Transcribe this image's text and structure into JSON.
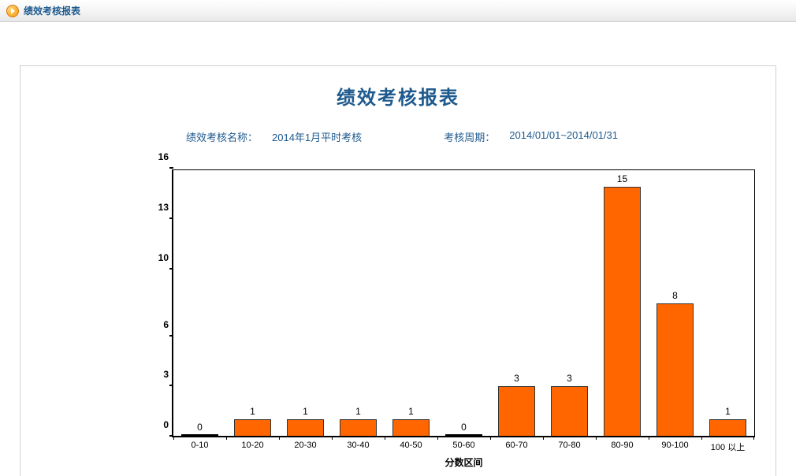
{
  "breadcrumb": {
    "title": "绩效考核报表"
  },
  "report": {
    "title": "绩效考核报表",
    "name_label": "绩效考核名称：",
    "name_value": "2014年1月平时考核",
    "period_label": "考核周期：",
    "period_value": "2014/01/01~2014/01/31"
  },
  "chart": {
    "type": "bar",
    "x_axis_label": "分数区间",
    "categories": [
      "0-10",
      "10-20",
      "20-30",
      "30-40",
      "40-50",
      "50-60",
      "60-70",
      "70-80",
      "80-90",
      "90-100",
      "100 以上"
    ],
    "values": [
      0,
      1,
      1,
      1,
      1,
      0,
      3,
      3,
      15,
      8,
      1
    ],
    "value_labels": [
      "0",
      "1",
      "1",
      "1",
      "1",
      "0",
      "3",
      "3",
      "15",
      "8",
      "1"
    ],
    "bar_color": "#ff6600",
    "bar_border_color": "#333333",
    "ylim": [
      0,
      16
    ],
    "yticks": [
      0,
      3,
      6,
      10,
      13,
      16
    ],
    "ytick_labels": [
      "0",
      "3",
      "6",
      "10",
      "13",
      "16"
    ],
    "axis_color": "#000000",
    "background_color": "#ffffff",
    "label_color": "#000000",
    "label_fontsize": 12,
    "bar_width": 0.7
  },
  "colors": {
    "primary_text": "#1e5a8e",
    "border": "#d0d0d0"
  }
}
